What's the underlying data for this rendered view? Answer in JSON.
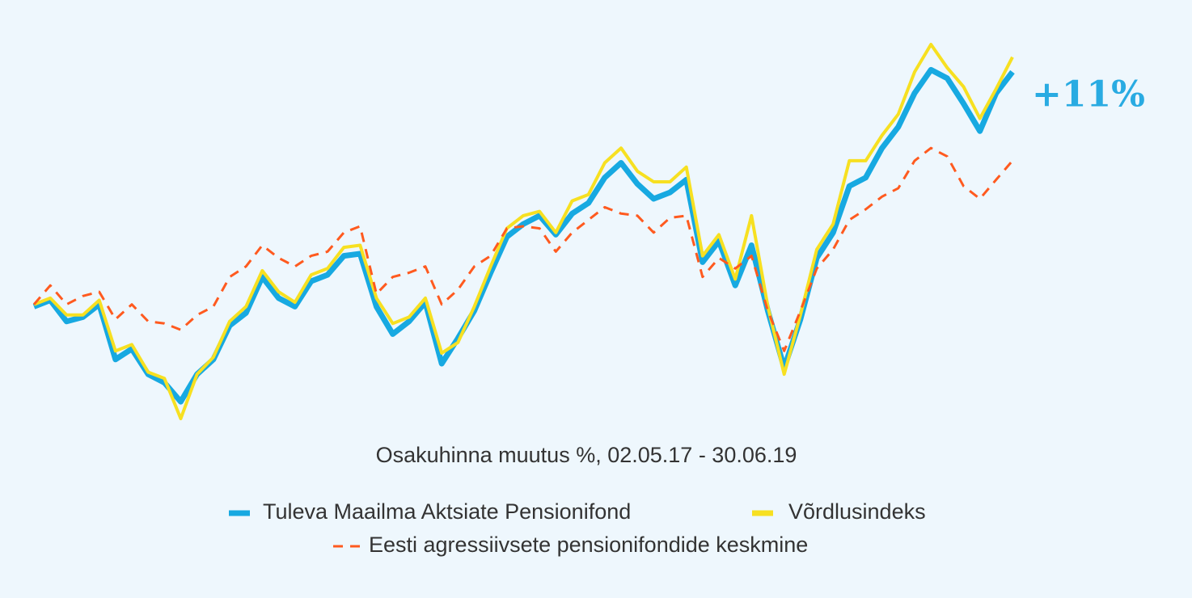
{
  "chart_data": {
    "type": "line",
    "title": "Osakuhinna muutus %, 02.05.17 - 30.06.19",
    "annotation": "+11%",
    "series": [
      {
        "name": "Tuleva Maailma Aktsiate Pensionifond",
        "color": "#17a9e1",
        "values": [
          -0.1,
          0.2,
          -0.8,
          -0.6,
          0,
          -2.6,
          -2.1,
          -3.3,
          -3.7,
          -4.6,
          -3.3,
          -2.6,
          -1.0,
          -0.4,
          1.3,
          0.3,
          -0.1,
          1.1,
          1.4,
          2.3,
          2.4,
          -0.1,
          -1.4,
          -0.8,
          0.1,
          -2.8,
          -1.6,
          -0.3,
          1.5,
          3.2,
          3.8,
          4.2,
          3.3,
          4.3,
          4.8,
          6.0,
          6.7,
          5.7,
          5.0,
          5.3,
          5.9,
          2.0,
          3.0,
          0.9,
          2.8,
          -0.3,
          -3.0,
          -0.7,
          2.2,
          3.4,
          5.6,
          6.0,
          7.4,
          8.4,
          10.0,
          11.1,
          10.7,
          9.5,
          8.2,
          10.0,
          11.0
        ]
      },
      {
        "name": "Võrdlusindeks",
        "color": "#f7e021",
        "values": [
          0,
          0.3,
          -0.5,
          -0.5,
          0.2,
          -2.2,
          -1.9,
          -3.2,
          -3.5,
          -5.4,
          -3.3,
          -2.5,
          -0.8,
          -0.1,
          1.6,
          0.6,
          0.1,
          1.4,
          1.7,
          2.7,
          2.8,
          0.3,
          -0.9,
          -0.6,
          0.3,
          -2.3,
          -1.8,
          -0.1,
          1.8,
          3.6,
          4.2,
          4.4,
          3.4,
          4.9,
          5.2,
          6.7,
          7.4,
          6.3,
          5.8,
          5.8,
          6.5,
          2.3,
          3.3,
          1.2,
          4.2,
          -0.1,
          -3.3,
          -0.5,
          2.6,
          3.8,
          6.8,
          6.8,
          8.0,
          9.0,
          11.0,
          12.3,
          11.2,
          10.3,
          8.8,
          10.2,
          11.7
        ]
      },
      {
        "name": "Eesti agressiivsete pensionifondide keskmine",
        "color": "#ff5a1f",
        "dashed": true,
        "values": [
          0,
          0.9,
          0,
          0.4,
          0.6,
          -0.7,
          0,
          -0.8,
          -0.9,
          -1.2,
          -0.5,
          -0.1,
          1.3,
          1.8,
          2.8,
          2.2,
          1.8,
          2.3,
          2.5,
          3.4,
          3.7,
          0.5,
          1.3,
          1.5,
          1.8,
          0,
          0.7,
          1.8,
          2.3,
          3.6,
          3.7,
          3.6,
          2.5,
          3.4,
          4.0,
          4.6,
          4.3,
          4.2,
          3.4,
          4.1,
          4.2,
          1.3,
          2.2,
          1.7,
          2.3,
          -0.3,
          -2.2,
          -0.3,
          1.7,
          2.6,
          4.0,
          4.5,
          5.1,
          5.5,
          6.8,
          7.4,
          7.0,
          5.6,
          5.0,
          5.9,
          6.8
        ]
      }
    ]
  }
}
